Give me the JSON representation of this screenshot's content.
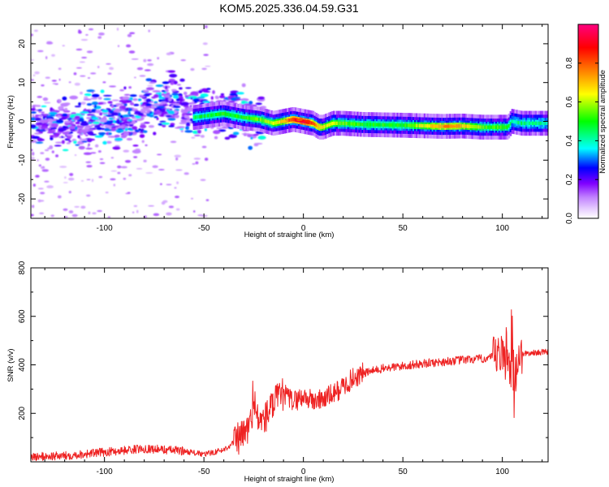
{
  "chart_data": [
    {
      "type": "heatmap",
      "title": "KOM5.2025.336.04.59.G31",
      "xlabel": "Height of straight line (km)",
      "ylabel": "Frequency (Hz)",
      "xlim": [
        -137,
        123
      ],
      "ylim": [
        -25,
        25
      ],
      "xticks": [
        -100,
        -50,
        0,
        50,
        100
      ],
      "yticks": [
        -20,
        -10,
        0,
        10,
        20
      ],
      "colorbar": {
        "label": "Normalized spectral amplitude",
        "range": [
          0,
          1
        ],
        "ticks": [
          0.0,
          0.2,
          0.4,
          0.6,
          0.8
        ],
        "colors": [
          "#ffffff",
          "#c080ff",
          "#8000ff",
          "#0000ff",
          "#00ffff",
          "#00ff00",
          "#ffff00",
          "#ff8000",
          "#ff0000",
          "#ff0080"
        ]
      },
      "ridge": {
        "x": [
          -55,
          -40,
          -30,
          -22,
          -15,
          -10,
          -5,
          0,
          5,
          8,
          10,
          15,
          20,
          30,
          50,
          70,
          80,
          90,
          95,
          100,
          103,
          105,
          110,
          123
        ],
        "y": [
          1,
          2,
          1,
          0.5,
          -0.5,
          0,
          0.5,
          0,
          -0.5,
          -1.5,
          -1.5,
          -0.5,
          -0.5,
          -0.8,
          -1,
          -1.3,
          -1.2,
          -1.5,
          -1.5,
          -1.5,
          -1.5,
          0,
          -0.5,
          -0.5
        ],
        "amplitude": [
          0.45,
          0.5,
          0.5,
          0.55,
          0.6,
          0.7,
          0.85,
          0.95,
          0.8,
          0.7,
          0.65,
          0.6,
          0.55,
          0.5,
          0.5,
          0.75,
          0.7,
          0.55,
          0.5,
          0.55,
          0.5,
          0.4,
          0.45,
          0.4
        ]
      }
    },
    {
      "type": "line",
      "xlabel": "Height of straight line (km)",
      "ylabel": "SNR (v/v)",
      "xlim": [
        -137,
        123
      ],
      "ylim": [
        0,
        800
      ],
      "xticks": [
        -100,
        -50,
        0,
        50,
        100
      ],
      "yticks": [
        200,
        400,
        600,
        800
      ],
      "color": "#ff0000",
      "trend": {
        "x": [
          -137,
          -120,
          -100,
          -80,
          -60,
          -50,
          -40,
          -30,
          -25,
          -20,
          -15,
          -10,
          -5,
          0,
          5,
          10,
          15,
          20,
          25,
          30,
          40,
          50,
          60,
          80,
          90,
          95,
          100,
          102,
          104,
          106,
          108,
          110,
          123
        ],
        "y": [
          20,
          25,
          40,
          55,
          45,
          30,
          50,
          110,
          180,
          170,
          240,
          280,
          250,
          270,
          250,
          260,
          280,
          310,
          345,
          365,
          385,
          395,
          405,
          420,
          425,
          430,
          435,
          420,
          360,
          330,
          430,
          445,
          455
        ]
      }
    }
  ]
}
